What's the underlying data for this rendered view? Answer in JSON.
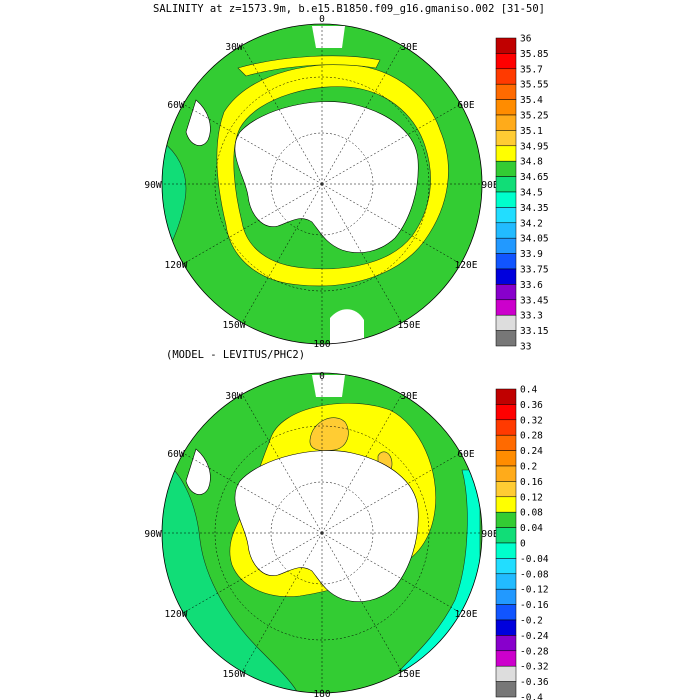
{
  "figure": {
    "title": "SALINITY at z=1573.9m, b.e15.B1850.f09_g16.gmaniso.002 [31-50]",
    "subtitle": "(MODEL - LEVITUS/PHC2)",
    "longitude_labels": [
      "0",
      "30E",
      "60E",
      "90E",
      "120E",
      "150E",
      "180",
      "150W",
      "120W",
      "90W",
      "60W",
      "30W"
    ]
  },
  "colors": {
    "land": "#ffffff",
    "coast": "#000000",
    "contour": "#1a3a1a"
  },
  "top_map": {
    "colorbar": {
      "levels": [
        "36",
        "35.85",
        "35.7",
        "35.55",
        "35.4",
        "35.25",
        "35.1",
        "34.95",
        "34.8",
        "34.65",
        "34.5",
        "34.35",
        "34.2",
        "34.05",
        "33.9",
        "33.75",
        "33.6",
        "33.45",
        "33.3",
        "33.15",
        "33"
      ],
      "colors": [
        "#c00000",
        "#ff0000",
        "#ff3a00",
        "#ff6a00",
        "#ff8c00",
        "#ffab1a",
        "#ffcc33",
        "#ffff00",
        "#33cc33",
        "#11dd77",
        "#00ffcc",
        "#22ddff",
        "#22bbff",
        "#2299ff",
        "#1155ff",
        "#0000dd",
        "#8800cc",
        "#cc00cc",
        "#dddddd",
        "#777777"
      ]
    }
  },
  "bottom_map": {
    "colorbar": {
      "levels": [
        "0.4",
        "0.36",
        "0.32",
        "0.28",
        "0.24",
        "0.2",
        "0.16",
        "0.12",
        "0.08",
        "0.04",
        "0",
        "-0.04",
        "-0.08",
        "-0.12",
        "-0.16",
        "-0.2",
        "-0.24",
        "-0.28",
        "-0.32",
        "-0.36",
        "-0.4"
      ],
      "colors": [
        "#c00000",
        "#ff0000",
        "#ff3a00",
        "#ff6a00",
        "#ff8c00",
        "#ffab1a",
        "#ffcc33",
        "#ffff00",
        "#33cc33",
        "#11dd77",
        "#00ffcc",
        "#22ddff",
        "#22bbff",
        "#2299ff",
        "#1155ff",
        "#0000dd",
        "#8800cc",
        "#cc00cc",
        "#dddddd",
        "#777777"
      ]
    }
  }
}
